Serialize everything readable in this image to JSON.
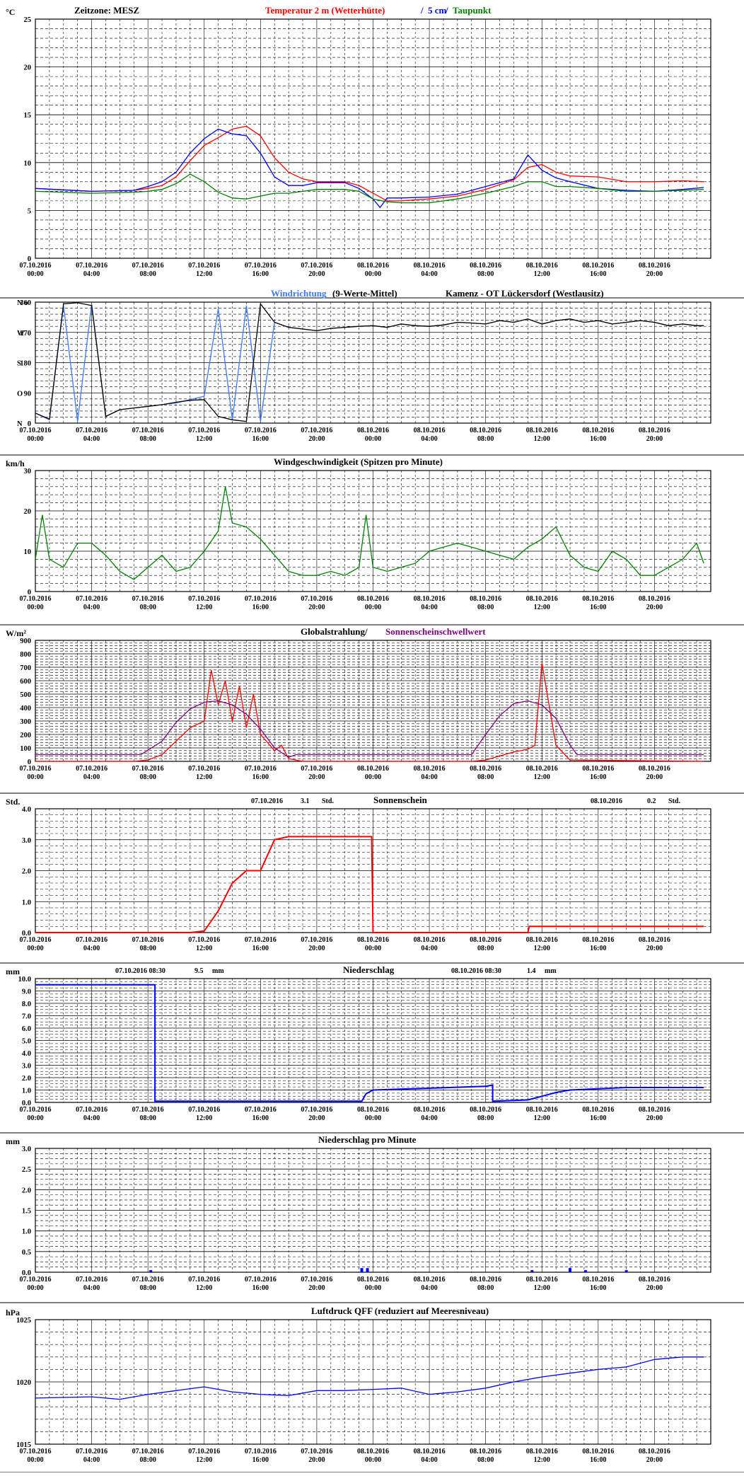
{
  "x_ticks": [
    [
      "07.10.2016",
      "00:00"
    ],
    [
      "07.10.2016",
      "04:00"
    ],
    [
      "07.10.2016",
      "08:00"
    ],
    [
      "07.10.2016",
      "12:00"
    ],
    [
      "07.10.2016",
      "16:00"
    ],
    [
      "07.10.2016",
      "20:00"
    ],
    [
      "08.10.2016",
      "00:00"
    ],
    [
      "08.10.2016",
      "04:00"
    ],
    [
      "08.10.2016",
      "08:00"
    ],
    [
      "08.10.2016",
      "12:00"
    ],
    [
      "08.10.2016",
      "16:00"
    ],
    [
      "08.10.2016",
      "20:00"
    ]
  ],
  "colors": {
    "red": "#ff0000",
    "blue": "#0000ff",
    "lightblue": "#3a78ff",
    "green": "#008000",
    "purple": "#800080",
    "black": "#000000"
  },
  "chart_data": [
    {
      "id": "temp",
      "type": "line",
      "unit": "°C",
      "title_parts": [
        {
          "text": "Zeitzone: MESZ",
          "color": "#000000"
        },
        {
          "text": "Temperatur 2 m (Wetterhütte)",
          "color": "#ff0000"
        },
        {
          "text": " / ",
          "color": "#0000ff"
        },
        {
          "text": "5 cm",
          "color": "#0000ff"
        },
        {
          "text": " / ",
          "color": "#0000ff"
        },
        {
          "text": "Taupunkt",
          "color": "#008000"
        }
      ],
      "ylim": [
        0,
        25
      ],
      "yticks": [
        0,
        5,
        10,
        15,
        20,
        25
      ],
      "series": [
        {
          "name": "Temperatur 2 m (Wetterhütte)",
          "color": "#ff0000",
          "x": [
            0,
            4,
            7,
            8,
            9,
            10,
            11,
            12,
            13,
            14,
            15,
            16,
            17,
            18,
            19,
            20,
            22,
            23,
            24,
            25,
            26,
            28,
            30,
            32,
            34,
            35,
            36,
            37,
            38,
            40,
            42,
            44,
            46,
            47.5
          ],
          "y": [
            7.3,
            7.0,
            7.1,
            7.3,
            7.6,
            8.5,
            10.2,
            11.8,
            12.6,
            13.5,
            13.8,
            12.8,
            10.5,
            9.0,
            8.3,
            8.0,
            8.0,
            7.6,
            6.8,
            6.0,
            6.0,
            6.2,
            6.5,
            7.2,
            8.2,
            9.5,
            9.8,
            9.0,
            8.6,
            8.5,
            8.0,
            8.0,
            8.1,
            8.0
          ]
        },
        {
          "name": "5 cm",
          "color": "#0000ff",
          "x": [
            0,
            4,
            7,
            8,
            9,
            10,
            11,
            12,
            13,
            14,
            15,
            16,
            17,
            18,
            19,
            20,
            22,
            23,
            24,
            24.5,
            25,
            26,
            28,
            30,
            32,
            34,
            35,
            36,
            37,
            38,
            40,
            42,
            44,
            46,
            47.5
          ],
          "y": [
            7.3,
            7.0,
            7.1,
            7.5,
            8.0,
            9.0,
            11.0,
            12.5,
            13.5,
            13.0,
            12.8,
            11.0,
            8.5,
            7.6,
            7.6,
            7.9,
            7.9,
            7.3,
            6.2,
            5.3,
            6.3,
            6.3,
            6.4,
            6.7,
            7.5,
            8.3,
            10.8,
            9.2,
            8.4,
            8.0,
            7.3,
            7.1,
            7.0,
            7.2,
            7.4
          ]
        },
        {
          "name": "Taupunkt",
          "color": "#008000",
          "x": [
            0,
            4,
            7,
            8,
            9,
            10,
            11,
            12,
            13,
            14,
            15,
            16,
            17,
            18,
            19,
            20,
            22,
            23,
            24,
            25,
            26,
            28,
            30,
            32,
            34,
            35,
            36,
            37,
            38,
            40,
            42,
            44,
            46,
            47.5
          ],
          "y": [
            7.0,
            6.8,
            6.9,
            7.0,
            7.2,
            7.8,
            8.8,
            8.0,
            6.9,
            6.3,
            6.2,
            6.5,
            6.8,
            6.8,
            7.0,
            7.2,
            7.2,
            7.0,
            6.2,
            5.9,
            5.8,
            5.8,
            6.2,
            6.8,
            7.5,
            8.0,
            8.0,
            7.5,
            7.5,
            7.3,
            7.0,
            7.0,
            7.1,
            7.2
          ]
        }
      ]
    },
    {
      "id": "wind_dir",
      "type": "line",
      "unit": "",
      "title_parts": [
        {
          "text": "Windrichtung",
          "color": "#3a78ff"
        },
        {
          "text": " (9-Werte-Mittel)",
          "color": "#000000"
        },
        {
          "text": "Kamenz - OT Lückersdorf (Westlausitz)",
          "color": "#000000"
        }
      ],
      "ylim": [
        0,
        360
      ],
      "yticks": [
        0,
        90,
        180,
        270,
        360
      ],
      "dir_labels": [
        "N",
        "O",
        "S",
        "W",
        "N o"
      ],
      "series": [
        {
          "name": "Windrichtung",
          "color": "#3a78ff",
          "x": [
            0,
            1,
            2,
            3,
            4,
            5,
            6,
            7,
            8,
            9,
            10,
            11,
            12,
            13,
            14,
            15,
            16,
            17,
            18,
            19,
            20,
            21,
            22,
            23,
            24,
            25,
            26,
            27,
            28,
            29,
            30,
            31,
            32,
            33,
            34,
            35,
            36,
            37,
            38,
            39,
            40,
            41,
            42,
            43,
            44,
            45,
            46,
            47,
            47.5
          ],
          "y": [
            30,
            10,
            350,
            5,
            355,
            20,
            40,
            45,
            50,
            55,
            60,
            70,
            80,
            340,
            10,
            350,
            5,
            300,
            285,
            280,
            275,
            282,
            285,
            288,
            290,
            285,
            295,
            290,
            288,
            292,
            300,
            298,
            295,
            305,
            300,
            310,
            295,
            305,
            310,
            300,
            305,
            295,
            300,
            305,
            300,
            290,
            295,
            290,
            290
          ]
        },
        {
          "name": "9-Werte-Mittel",
          "color": "#000000",
          "x": [
            0,
            1,
            2,
            3,
            4,
            5,
            6,
            7,
            8,
            9,
            10,
            11,
            12,
            13,
            14,
            15,
            16,
            17,
            18,
            19,
            20,
            21,
            22,
            23,
            24,
            25,
            26,
            27,
            28,
            29,
            30,
            31,
            32,
            33,
            34,
            35,
            36,
            37,
            38,
            39,
            40,
            41,
            42,
            43,
            44,
            45,
            46,
            47,
            47.5
          ],
          "y": [
            30,
            12,
            355,
            358,
            350,
            20,
            40,
            45,
            50,
            55,
            62,
            68,
            70,
            20,
            10,
            5,
            355,
            300,
            285,
            280,
            275,
            282,
            285,
            288,
            290,
            285,
            295,
            290,
            288,
            292,
            300,
            298,
            295,
            305,
            300,
            310,
            295,
            305,
            310,
            300,
            305,
            295,
            300,
            305,
            300,
            290,
            295,
            290,
            290
          ]
        }
      ]
    },
    {
      "id": "wind_speed",
      "type": "line",
      "unit": "km/h",
      "title_parts": [
        {
          "text": "Windgeschwindigkeit (Spitzen pro Minute)",
          "color": "#000000"
        }
      ],
      "ylim": [
        0,
        30
      ],
      "yticks": [
        0,
        10,
        20,
        30
      ],
      "series": [
        {
          "name": "Windgeschwindigkeit",
          "color": "#008000",
          "x": [
            0,
            0.5,
            1,
            2,
            3,
            4,
            5,
            6,
            7,
            8,
            9,
            10,
            11,
            12,
            13,
            13.5,
            14,
            15,
            16,
            17,
            18,
            19,
            20,
            21,
            22,
            23,
            23.5,
            24,
            25,
            26,
            27,
            28,
            29,
            30,
            31,
            32,
            33,
            34,
            35,
            36,
            37,
            38,
            39,
            40,
            41,
            42,
            43,
            44,
            45,
            46,
            47,
            47.5
          ],
          "y": [
            8,
            19,
            8,
            6,
            12,
            12,
            9,
            5,
            3,
            6,
            9,
            5,
            6,
            10,
            15,
            26,
            17,
            16,
            13,
            9,
            5,
            4,
            4,
            5,
            4,
            6,
            19,
            6,
            5,
            6,
            7,
            10,
            11,
            12,
            11,
            10,
            9,
            8,
            11,
            13,
            16,
            9,
            6,
            5,
            10,
            8,
            4,
            4,
            6,
            8,
            12,
            7
          ]
        }
      ]
    },
    {
      "id": "radiation",
      "type": "line",
      "unit": "W/m²",
      "title_parts": [
        {
          "text": "Globalstrahlung/",
          "color": "#000000"
        },
        {
          "text": " Sonnenscheinschwellwert",
          "color": "#800080"
        }
      ],
      "ylim": [
        0,
        900
      ],
      "yticks": [
        0,
        100,
        200,
        300,
        400,
        500,
        600,
        700,
        800,
        900
      ],
      "series": [
        {
          "name": "Globalstrahlung",
          "color": "#ff0000",
          "x": [
            0,
            7,
            8,
            9,
            10,
            11,
            12,
            12.5,
            13,
            13.5,
            14,
            14.5,
            15,
            15.5,
            16,
            17,
            17.5,
            18,
            19,
            31,
            32,
            33,
            34,
            35,
            35.5,
            36,
            37,
            38,
            47.5
          ],
          "y": [
            0,
            0,
            10,
            50,
            150,
            250,
            300,
            680,
            420,
            600,
            300,
            560,
            250,
            500,
            200,
            80,
            120,
            20,
            0,
            0,
            10,
            40,
            70,
            90,
            120,
            730,
            120,
            10,
            0
          ]
        },
        {
          "name": "Sonnenscheinschwellwert",
          "color": "#800080",
          "x": [
            0,
            7.5,
            9,
            10,
            11,
            12,
            13,
            14,
            15,
            16,
            17,
            18,
            18.5,
            31,
            32,
            33,
            34,
            35,
            36,
            37,
            38,
            38.5,
            47.5
          ],
          "y": [
            50,
            50,
            150,
            290,
            390,
            440,
            450,
            420,
            350,
            240,
            100,
            30,
            50,
            50,
            200,
            340,
            430,
            450,
            420,
            320,
            120,
            50,
            50
          ]
        }
      ]
    },
    {
      "id": "sunshine",
      "type": "line",
      "unit": "Std.",
      "title_parts": [
        {
          "text": "Sonnenschein",
          "color": "#000000"
        }
      ],
      "day_totals": [
        {
          "date": "07.10.2016",
          "value": "3.1",
          "unit": "Std."
        },
        {
          "date": "08.10.2016",
          "value": "0.2",
          "unit": "Std."
        }
      ],
      "ylim": [
        0,
        4
      ],
      "yticks": [
        "0.0",
        "1.0",
        "2.0",
        "3.0",
        "4.0"
      ],
      "series": [
        {
          "name": "Sonnenschein",
          "color": "#ff0000",
          "x": [
            0,
            11,
            12,
            13,
            14,
            15,
            16,
            17,
            18,
            23.9,
            24,
            35,
            35.1,
            47.5
          ],
          "y": [
            0,
            0,
            0.05,
            0.7,
            1.6,
            2.0,
            2.0,
            3.0,
            3.1,
            3.1,
            0,
            0,
            0.2,
            0.2
          ]
        }
      ]
    },
    {
      "id": "precip",
      "type": "line",
      "unit": "mm",
      "title_parts": [
        {
          "text": "Niederschlag",
          "color": "#000000"
        }
      ],
      "day_totals": [
        {
          "date": "07.10.2016 08:30",
          "value": "9.5",
          "unit": "mm"
        },
        {
          "date": "08.10.2016 08:30",
          "value": "1.4",
          "unit": "mm"
        }
      ],
      "ylim": [
        0,
        10
      ],
      "yticks": [
        "0.0",
        "1.0",
        "2.0",
        "3.0",
        "4.0",
        "5.0",
        "6.0",
        "7.0",
        "8.0",
        "9.0",
        "10.0"
      ],
      "series": [
        {
          "name": "Niederschlag",
          "color": "#0000ff",
          "x": [
            0,
            8.5,
            8.5,
            23.2,
            23.5,
            24,
            32,
            32.5,
            32.5,
            35,
            36,
            37,
            38,
            40,
            42,
            47.5
          ],
          "y": [
            9.5,
            9.5,
            0.1,
            0.1,
            0.7,
            1.0,
            1.3,
            1.4,
            0.1,
            0.2,
            0.5,
            0.8,
            1.0,
            1.1,
            1.2,
            1.2
          ]
        }
      ]
    },
    {
      "id": "precip_min",
      "type": "bar",
      "unit": "mm",
      "title_parts": [
        {
          "text": "Niederschlag pro Minute",
          "color": "#000000"
        }
      ],
      "ylim": [
        0,
        3
      ],
      "yticks": [
        "0.0",
        "0.5",
        "1.0",
        "1.5",
        "2.0",
        "2.5",
        "3.0"
      ],
      "series": [
        {
          "name": "Niederschlag pro Minute",
          "color": "#0000ff",
          "x": [
            8.2,
            23.2,
            23.6,
            35.3,
            38,
            39.1,
            42
          ],
          "y": [
            0.05,
            0.1,
            0.1,
            0.05,
            0.1,
            0.05,
            0.05
          ]
        }
      ]
    },
    {
      "id": "pressure",
      "type": "line",
      "unit": "hPa",
      "title_parts": [
        {
          "text": "Luftdruck QFF (reduziert auf Meeresniveau)",
          "color": "#000000"
        }
      ],
      "ylim": [
        1015,
        1025
      ],
      "yticks": [
        1015,
        1020,
        1025
      ],
      "series": [
        {
          "name": "Luftdruck",
          "color": "#0000ff",
          "x": [
            0,
            4,
            6,
            8,
            10,
            12,
            14,
            16,
            18,
            20,
            22,
            24,
            26,
            28,
            30,
            32,
            34,
            36,
            38,
            40,
            42,
            44,
            46,
            47.5
          ],
          "y": [
            1018.7,
            1018.8,
            1018.6,
            1019.0,
            1019.3,
            1019.6,
            1019.2,
            1019.0,
            1018.9,
            1019.3,
            1019.3,
            1019.4,
            1019.5,
            1019.0,
            1019.2,
            1019.5,
            1020.0,
            1020.4,
            1020.7,
            1021.0,
            1021.2,
            1021.8,
            1022.0,
            1022.0
          ]
        }
      ]
    }
  ]
}
